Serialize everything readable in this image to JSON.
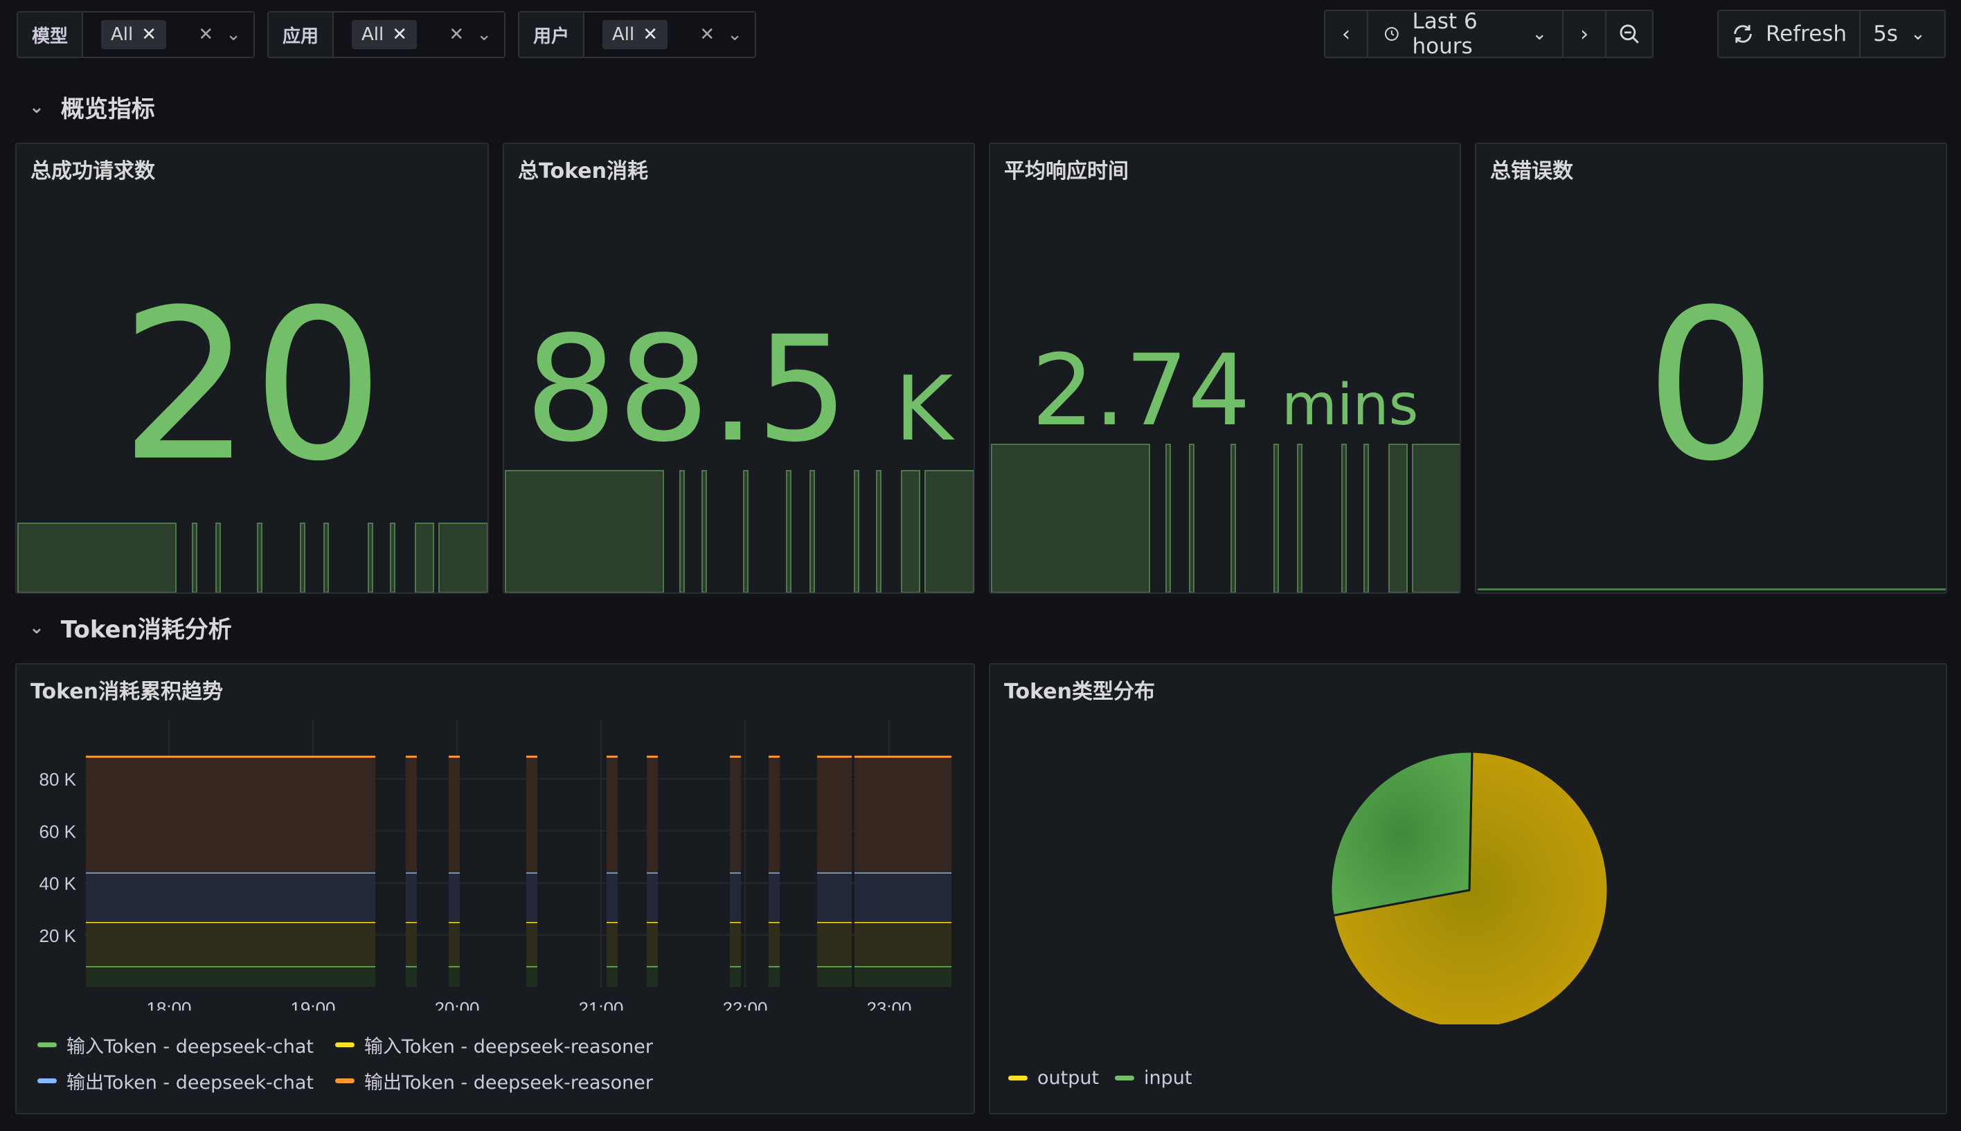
{
  "variables": [
    {
      "label": "模型",
      "value": "All"
    },
    {
      "label": "应用",
      "value": "All"
    },
    {
      "label": "用户",
      "value": "All"
    }
  ],
  "time_picker": {
    "range": "Last 6 hours",
    "refresh_label": "Refresh",
    "refresh_interval": "5s"
  },
  "rows": [
    {
      "title": "概览指标"
    },
    {
      "title": "Token消耗分析"
    }
  ],
  "stats": [
    {
      "title": "总成功请求数",
      "value": "20",
      "unit": ""
    },
    {
      "title": "总Token消耗",
      "value": "88.5",
      "unit": "K"
    },
    {
      "title": "平均响应时间",
      "value": "2.74",
      "unit": "mins"
    },
    {
      "title": "总错误数",
      "value": "0",
      "unit": ""
    }
  ],
  "timeseries": {
    "title": "Token消耗累积趋势",
    "y_ticks": [
      "80 K",
      "60 K",
      "40 K",
      "20 K"
    ],
    "x_ticks": [
      "18:00",
      "19:00",
      "20:00",
      "21:00",
      "22:00",
      "23:00"
    ],
    "legend": [
      {
        "name": "输入Token - deepseek-chat",
        "color": "#73bf69"
      },
      {
        "name": "输入Token - deepseek-reasoner",
        "color": "#fade2a"
      },
      {
        "name": "输出Token - deepseek-chat",
        "color": "#8ab8ff"
      },
      {
        "name": "输出Token - deepseek-reasoner",
        "color": "#ff9830"
      }
    ]
  },
  "pie": {
    "title": "Token类型分布",
    "legend": [
      {
        "name": "output",
        "color": "#fade2a"
      },
      {
        "name": "input",
        "color": "#73bf69"
      }
    ]
  },
  "chart_data": [
    {
      "type": "area",
      "title": "Token消耗累积趋势",
      "x": [
        "18:00",
        "19:00",
        "20:00",
        "21:00",
        "22:00",
        "23:00"
      ],
      "ylim": [
        0,
        100000
      ],
      "series": [
        {
          "name": "输入Token - deepseek-chat",
          "value": 8000
        },
        {
          "name": "输入Token - deepseek-reasoner",
          "value": 17000
        },
        {
          "name": "输出Token - deepseek-chat",
          "value": 19000
        },
        {
          "name": "输出Token - deepseek-reasoner",
          "value": 44500
        }
      ]
    },
    {
      "type": "pie",
      "title": "Token类型分布",
      "categories": [
        "output",
        "input"
      ],
      "values": [
        63500,
        25000
      ]
    }
  ]
}
